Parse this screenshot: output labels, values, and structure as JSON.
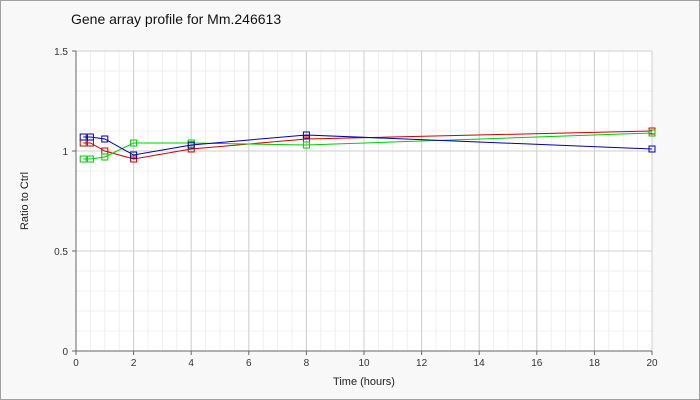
{
  "chart_data": {
    "type": "line",
    "title": "Gene array profile for Mm.246613",
    "xlabel": "Time (hours)",
    "ylabel": "Ratio to Ctrl",
    "xlim": [
      0,
      20
    ],
    "ylim": [
      0,
      1.5
    ],
    "x_ticks": [
      0,
      2,
      4,
      6,
      8,
      10,
      12,
      14,
      16,
      18,
      20
    ],
    "y_ticks": [
      0,
      0.5,
      1,
      1.5
    ],
    "x_tick_labels": [
      "0",
      "2",
      "4",
      "6",
      "8",
      "10",
      "12",
      "14",
      "16",
      "18",
      "20"
    ],
    "y_tick_labels": [
      "0",
      "0.5",
      "1",
      "1.5"
    ],
    "grid": true,
    "series": [
      {
        "color": "#d00000",
        "marker": "square",
        "x": [
          0.25,
          0.5,
          1,
          2,
          4,
          8,
          20
        ],
        "y": [
          1.04,
          1.04,
          1.0,
          0.96,
          1.01,
          1.06,
          1.1
        ]
      },
      {
        "color": "#00cc00",
        "marker": "square",
        "x": [
          0.25,
          0.5,
          1,
          2,
          4,
          8,
          20
        ],
        "y": [
          0.96,
          0.96,
          0.97,
          1.04,
          1.04,
          1.03,
          1.09
        ]
      },
      {
        "color": "#0000b0",
        "marker": "square",
        "x": [
          0.25,
          0.5,
          1,
          2,
          4,
          8,
          20
        ],
        "y": [
          1.07,
          1.07,
          1.06,
          0.98,
          1.03,
          1.08,
          1.01
        ]
      }
    ]
  }
}
